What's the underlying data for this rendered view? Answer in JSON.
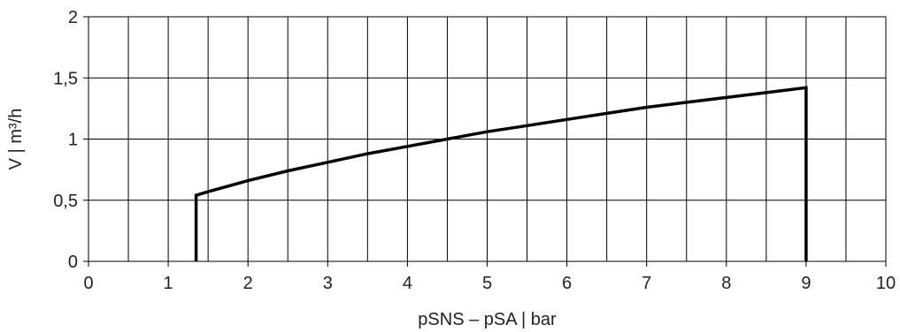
{
  "chart_data": {
    "type": "line",
    "xlabel": "pSNS – pSA | bar",
    "ylabel": "V | m³/h",
    "xlim": [
      0,
      10
    ],
    "ylim": [
      0,
      2
    ],
    "x_ticks": [
      "0",
      "1",
      "2",
      "3",
      "4",
      "5",
      "6",
      "7",
      "8",
      "9",
      "10"
    ],
    "y_ticks": [
      "0",
      "0,5",
      "1",
      "1,5",
      "2"
    ],
    "grid": true,
    "x_minor_gridlines": true,
    "line_color": "#000000",
    "series": [
      {
        "x": [
          1.35,
          1.35,
          1.5,
          2,
          2.5,
          3,
          3.5,
          4,
          4.5,
          5,
          5.5,
          6,
          6.5,
          7,
          7.5,
          8,
          8.5,
          9,
          9
        ],
        "y": [
          0,
          0.54,
          0.57,
          0.66,
          0.74,
          0.81,
          0.88,
          0.94,
          1.0,
          1.06,
          1.11,
          1.16,
          1.21,
          1.26,
          1.3,
          1.34,
          1.38,
          1.42,
          0
        ]
      }
    ]
  }
}
